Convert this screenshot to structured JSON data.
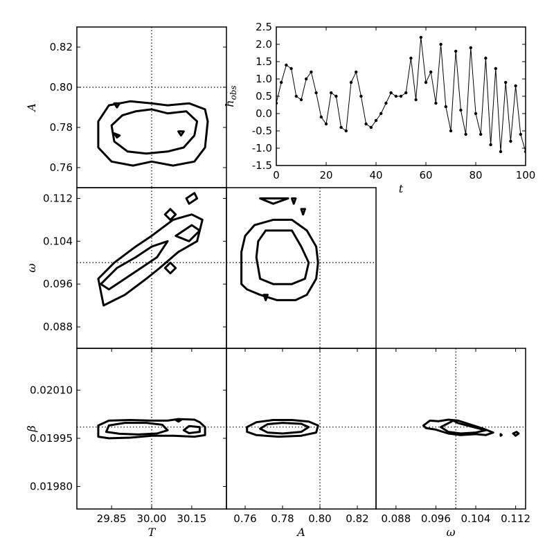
{
  "chart_data": [
    {
      "id": "T_A",
      "type": "contour",
      "xlabel": "T",
      "ylabel": "A",
      "xlim": [
        29.72,
        30.28
      ],
      "ylim": [
        0.75,
        0.83
      ],
      "xticks": [],
      "xtick_labels": [],
      "yticks": [
        0.76,
        0.78,
        0.8,
        0.82
      ],
      "ytick_labels": [
        "0.76",
        "0.78",
        "0.80",
        "0.82"
      ],
      "truth": {
        "x": 30.0,
        "y": 0.8
      },
      "contours": [
        [
          [
            29.8,
            0.783
          ],
          [
            29.8,
            0.77
          ],
          [
            29.85,
            0.763
          ],
          [
            29.93,
            0.761
          ],
          [
            30.0,
            0.763
          ],
          [
            30.08,
            0.761
          ],
          [
            30.16,
            0.763
          ],
          [
            30.2,
            0.77
          ],
          [
            30.21,
            0.783
          ],
          [
            30.2,
            0.789
          ],
          [
            30.14,
            0.792
          ],
          [
            30.06,
            0.791
          ],
          [
            30.0,
            0.792
          ],
          [
            29.92,
            0.793
          ],
          [
            29.84,
            0.791
          ]
        ],
        [
          [
            29.85,
            0.781
          ],
          [
            29.86,
            0.773
          ],
          [
            29.91,
            0.768
          ],
          [
            29.98,
            0.767
          ],
          [
            30.06,
            0.768
          ],
          [
            30.12,
            0.77
          ],
          [
            30.16,
            0.776
          ],
          [
            30.17,
            0.783
          ],
          [
            30.13,
            0.788
          ],
          [
            30.06,
            0.787
          ],
          [
            30.0,
            0.789
          ],
          [
            29.94,
            0.788
          ],
          [
            29.89,
            0.786
          ]
        ],
        [
          [
            29.86,
            0.792
          ],
          [
            29.87,
            0.79
          ],
          [
            29.88,
            0.792
          ]
        ],
        [
          [
            29.86,
            0.777
          ],
          [
            29.87,
            0.775
          ],
          [
            29.88,
            0.776
          ]
        ],
        [
          [
            30.1,
            0.778
          ],
          [
            30.11,
            0.776
          ],
          [
            30.12,
            0.778
          ]
        ]
      ]
    },
    {
      "id": "timeseries",
      "type": "line",
      "xlabel": "t",
      "ylabel": "h_obs",
      "xlim": [
        0,
        100
      ],
      "ylim": [
        -1.5,
        2.5
      ],
      "xticks": [
        0,
        20,
        40,
        60,
        80,
        100
      ],
      "xtick_labels": [
        "0",
        "20",
        "40",
        "60",
        "80",
        "100"
      ],
      "yticks": [
        -1.5,
        -1.0,
        -0.5,
        0.0,
        0.5,
        1.0,
        1.5,
        2.0,
        2.5
      ],
      "ytick_labels": [
        "-1.5",
        "-1.0",
        "-0.5",
        "0.0",
        "0.5",
        "1.0",
        "1.5",
        "2.0",
        "2.5"
      ],
      "x": [
        0,
        2,
        4,
        6,
        8,
        10,
        12,
        14,
        16,
        18,
        20,
        22,
        24,
        26,
        28,
        30,
        32,
        34,
        36,
        38,
        40,
        42,
        44,
        46,
        48,
        50,
        52,
        54,
        56,
        58,
        60,
        62,
        64,
        66,
        68,
        70,
        72,
        74,
        76,
        78,
        80,
        82,
        84,
        86,
        88,
        90,
        92,
        94,
        96,
        98,
        100
      ],
      "y": [
        0.3,
        0.9,
        1.4,
        1.3,
        0.5,
        0.4,
        1.0,
        1.2,
        0.6,
        -0.1,
        -0.3,
        0.6,
        0.5,
        -0.4,
        -0.5,
        0.9,
        1.2,
        0.5,
        -0.3,
        -0.4,
        -0.2,
        0.0,
        0.3,
        0.6,
        0.5,
        0.5,
        0.6,
        1.6,
        0.4,
        2.2,
        0.9,
        1.2,
        0.3,
        2.0,
        0.2,
        -0.5,
        1.8,
        0.1,
        -0.6,
        1.9,
        0.0,
        -0.6,
        1.6,
        -0.9,
        1.3,
        -1.1,
        0.9,
        -0.8,
        0.8,
        -0.6,
        -1.1
      ]
    },
    {
      "id": "T_omega",
      "type": "contour",
      "xlabel": "T",
      "ylabel": "ω",
      "xlim": [
        29.72,
        30.28
      ],
      "ylim": [
        0.084,
        0.114
      ],
      "xticks": [],
      "xtick_labels": [],
      "yticks": [
        0.088,
        0.096,
        0.104,
        0.112
      ],
      "ytick_labels": [
        "0.088",
        "0.096",
        "0.104",
        "0.112"
      ],
      "truth": {
        "x": 30.0,
        "y": 0.1
      },
      "contours": [
        [
          [
            29.82,
            0.092
          ],
          [
            29.8,
            0.097
          ],
          [
            29.86,
            0.1
          ],
          [
            29.94,
            0.103
          ],
          [
            30.0,
            0.105
          ],
          [
            30.08,
            0.108
          ],
          [
            30.15,
            0.109
          ],
          [
            30.19,
            0.108
          ],
          [
            30.17,
            0.104
          ],
          [
            30.1,
            0.102
          ],
          [
            30.03,
            0.099
          ],
          [
            29.98,
            0.097
          ],
          [
            29.9,
            0.094
          ],
          [
            29.86,
            0.093
          ]
        ],
        [
          [
            29.81,
            0.096
          ],
          [
            29.87,
            0.099
          ],
          [
            29.94,
            0.101
          ],
          [
            30.0,
            0.103
          ],
          [
            30.06,
            0.104
          ],
          [
            30.02,
            0.101
          ],
          [
            29.96,
            0.099
          ],
          [
            29.9,
            0.097
          ],
          [
            29.84,
            0.095
          ]
        ],
        [
          [
            30.09,
            0.105
          ],
          [
            30.15,
            0.107
          ],
          [
            30.18,
            0.106
          ],
          [
            30.14,
            0.104
          ]
        ],
        [
          [
            30.13,
            0.112
          ],
          [
            30.16,
            0.113
          ],
          [
            30.17,
            0.112
          ],
          [
            30.14,
            0.111
          ]
        ],
        [
          [
            30.07,
            0.11
          ],
          [
            30.09,
            0.109
          ],
          [
            30.07,
            0.108
          ],
          [
            30.05,
            0.109
          ]
        ],
        [
          [
            30.07,
            0.1
          ],
          [
            30.09,
            0.099
          ],
          [
            30.07,
            0.098
          ],
          [
            30.05,
            0.099
          ]
        ]
      ]
    },
    {
      "id": "A_omega",
      "type": "contour",
      "xlabel": "A",
      "ylabel": "ω",
      "xlim": [
        0.75,
        0.83
      ],
      "ylim": [
        0.084,
        0.114
      ],
      "xticks": [],
      "xtick_labels": [],
      "yticks": [],
      "ytick_labels": [],
      "truth": {
        "x": 0.8,
        "y": 0.1
      },
      "contours": [
        [
          [
            0.758,
            0.102
          ],
          [
            0.758,
            0.096
          ],
          [
            0.761,
            0.095
          ],
          [
            0.768,
            0.094
          ],
          [
            0.777,
            0.093
          ],
          [
            0.787,
            0.093
          ],
          [
            0.793,
            0.094
          ],
          [
            0.798,
            0.097
          ],
          [
            0.799,
            0.1
          ],
          [
            0.798,
            0.103
          ],
          [
            0.793,
            0.106
          ],
          [
            0.785,
            0.108
          ],
          [
            0.775,
            0.108
          ],
          [
            0.765,
            0.107
          ],
          [
            0.76,
            0.105
          ]
        ],
        [
          [
            0.766,
            0.101
          ],
          [
            0.768,
            0.097
          ],
          [
            0.775,
            0.096
          ],
          [
            0.785,
            0.096
          ],
          [
            0.792,
            0.097
          ],
          [
            0.794,
            0.1
          ],
          [
            0.79,
            0.103
          ],
          [
            0.785,
            0.106
          ],
          [
            0.776,
            0.106
          ],
          [
            0.771,
            0.106
          ],
          [
            0.767,
            0.104
          ]
        ],
        [
          [
            0.768,
            0.112
          ],
          [
            0.776,
            0.112
          ],
          [
            0.783,
            0.112
          ],
          [
            0.775,
            0.111
          ]
        ],
        [
          [
            0.785,
            0.112
          ],
          [
            0.786,
            0.111
          ],
          [
            0.787,
            0.112
          ]
        ],
        [
          [
            0.79,
            0.11
          ],
          [
            0.791,
            0.109
          ],
          [
            0.792,
            0.11
          ]
        ],
        [
          [
            0.77,
            0.094
          ],
          [
            0.771,
            0.093
          ],
          [
            0.772,
            0.094
          ]
        ]
      ]
    },
    {
      "id": "T_beta",
      "type": "contour",
      "xlabel": "T",
      "ylabel": "β",
      "xlim": [
        29.72,
        30.28
      ],
      "ylim": [
        0.01973,
        0.02023
      ],
      "xticks": [
        29.85,
        30.0,
        30.15
      ],
      "xtick_labels": [
        "29.85",
        "30.00",
        "30.15"
      ],
      "yticks": [
        0.0198,
        0.01995,
        0.0201
      ],
      "ytick_labels": [
        "0.01980",
        "0.01995",
        "0.02010"
      ],
      "truth": {
        "x": 30.0,
        "y": 0.019985
      },
      "contours": [
        [
          [
            29.8,
            0.019955
          ],
          [
            29.8,
            0.01999
          ],
          [
            29.84,
            0.020005
          ],
          [
            29.92,
            0.020007
          ],
          [
            30.0,
            0.020005
          ],
          [
            30.06,
            0.020005
          ],
          [
            30.1,
            0.02001
          ],
          [
            30.16,
            0.020008
          ],
          [
            30.18,
            0.02
          ],
          [
            30.2,
            0.019985
          ],
          [
            30.2,
            0.01996
          ],
          [
            30.16,
            0.019955
          ],
          [
            30.08,
            0.019958
          ],
          [
            30.0,
            0.019958
          ],
          [
            29.92,
            0.019952
          ],
          [
            29.84,
            0.01995
          ]
        ],
        [
          [
            29.83,
            0.01997
          ],
          [
            29.84,
            0.01999
          ],
          [
            29.9,
            0.019998
          ],
          [
            29.98,
            0.019998
          ],
          [
            30.04,
            0.019992
          ],
          [
            30.06,
            0.019975
          ],
          [
            30.02,
            0.019965
          ],
          [
            29.95,
            0.019962
          ],
          [
            29.88,
            0.019964
          ]
        ],
        [
          [
            30.12,
            0.019975
          ],
          [
            30.14,
            0.019988
          ],
          [
            30.18,
            0.019985
          ],
          [
            30.18,
            0.01997
          ],
          [
            30.14,
            0.019966
          ]
        ],
        [
          [
            30.09,
            0.020007
          ],
          [
            30.1,
            0.020002
          ],
          [
            30.11,
            0.020007
          ]
        ]
      ]
    },
    {
      "id": "A_beta",
      "type": "contour",
      "xlabel": "A",
      "ylabel": "β",
      "xlim": [
        0.75,
        0.83
      ],
      "ylim": [
        0.01973,
        0.02023
      ],
      "xticks": [
        0.76,
        0.78,
        0.8,
        0.82
      ],
      "xtick_labels": [
        "0.76",
        "0.78",
        "0.80",
        "0.82"
      ],
      "yticks": [],
      "ytick_labels": [],
      "truth": {
        "x": 0.8,
        "y": 0.019985
      },
      "contours": [
        [
          [
            0.761,
            0.019985
          ],
          [
            0.766,
            0.02
          ],
          [
            0.775,
            0.020007
          ],
          [
            0.785,
            0.020007
          ],
          [
            0.794,
            0.020002
          ],
          [
            0.799,
            0.01999
          ],
          [
            0.798,
            0.019968
          ],
          [
            0.79,
            0.019958
          ],
          [
            0.778,
            0.019955
          ],
          [
            0.766,
            0.01996
          ],
          [
            0.761,
            0.01997
          ]
        ],
        [
          [
            0.768,
            0.01998
          ],
          [
            0.772,
            0.019994
          ],
          [
            0.78,
            0.019998
          ],
          [
            0.79,
            0.019995
          ],
          [
            0.794,
            0.019985
          ],
          [
            0.79,
            0.01997
          ],
          [
            0.78,
            0.019965
          ],
          [
            0.772,
            0.019968
          ]
        ]
      ]
    },
    {
      "id": "omega_beta",
      "type": "contour",
      "xlabel": "ω",
      "ylabel": "β",
      "xlim": [
        0.084,
        0.114
      ],
      "ylim": [
        0.01973,
        0.02023
      ],
      "xticks": [
        0.088,
        0.096,
        0.104,
        0.112
      ],
      "xtick_labels": [
        "0.088",
        "0.096",
        "0.104",
        "0.112"
      ],
      "yticks": [],
      "ytick_labels": [],
      "truth": {
        "x": 0.1,
        "y": 0.019985
      },
      "contours": [
        [
          [
            0.0935,
            0.01999
          ],
          [
            0.0948,
            0.020005
          ],
          [
            0.0965,
            0.020003
          ],
          [
            0.0985,
            0.020008
          ],
          [
            0.1005,
            0.020005
          ],
          [
            0.1025,
            0.019995
          ],
          [
            0.1055,
            0.01998
          ],
          [
            0.1075,
            0.019968
          ],
          [
            0.106,
            0.01996
          ],
          [
            0.104,
            0.019963
          ],
          [
            0.101,
            0.01996
          ],
          [
            0.0985,
            0.019965
          ],
          [
            0.096,
            0.019977
          ],
          [
            0.094,
            0.019982
          ]
        ],
        [
          [
            0.097,
            0.019985
          ],
          [
            0.0995,
            0.020005
          ],
          [
            0.1005,
            0.019997
          ],
          [
            0.1035,
            0.019985
          ],
          [
            0.106,
            0.019975
          ],
          [
            0.104,
            0.019968
          ],
          [
            0.101,
            0.019965
          ],
          [
            0.0985,
            0.01997
          ]
        ],
        [
          [
            0.1115,
            0.019965
          ],
          [
            0.1122,
            0.01997
          ],
          [
            0.1126,
            0.019965
          ],
          [
            0.112,
            0.019958
          ]
        ],
        [
          [
            0.109,
            0.019963
          ],
          [
            0.1092,
            0.01996
          ],
          [
            0.109,
            0.019958
          ]
        ]
      ]
    }
  ]
}
